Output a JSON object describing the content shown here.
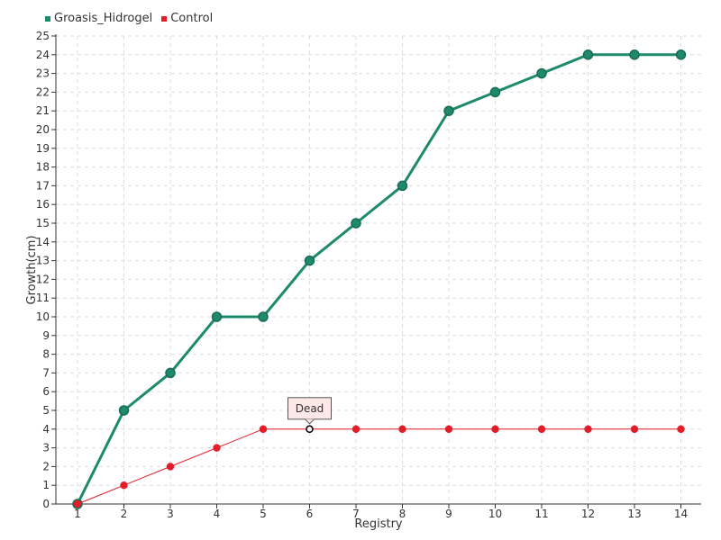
{
  "chart_data": {
    "type": "line",
    "x": [
      1,
      2,
      3,
      4,
      5,
      6,
      7,
      8,
      9,
      10,
      11,
      12,
      13,
      14
    ],
    "series": [
      {
        "name": "Groasis_Hidrogel",
        "color": "#1d8a6b",
        "values": [
          0,
          5,
          7,
          10,
          10,
          13,
          15,
          17,
          21,
          22,
          23,
          24,
          24,
          24
        ]
      },
      {
        "name": "Control",
        "color": "#e31e2a",
        "values": [
          0,
          1,
          2,
          3,
          4,
          4,
          4,
          4,
          4,
          4,
          4,
          4,
          4,
          4
        ]
      }
    ],
    "xlabel": "Registry",
    "ylabel": "Growth(cm)",
    "ylim": [
      0,
      25
    ],
    "xlim": [
      1,
      14
    ],
    "grid": true,
    "legend_position": "top-left",
    "annotation": {
      "text": "Dead",
      "series": "Control",
      "x": 6,
      "y": 4
    }
  }
}
